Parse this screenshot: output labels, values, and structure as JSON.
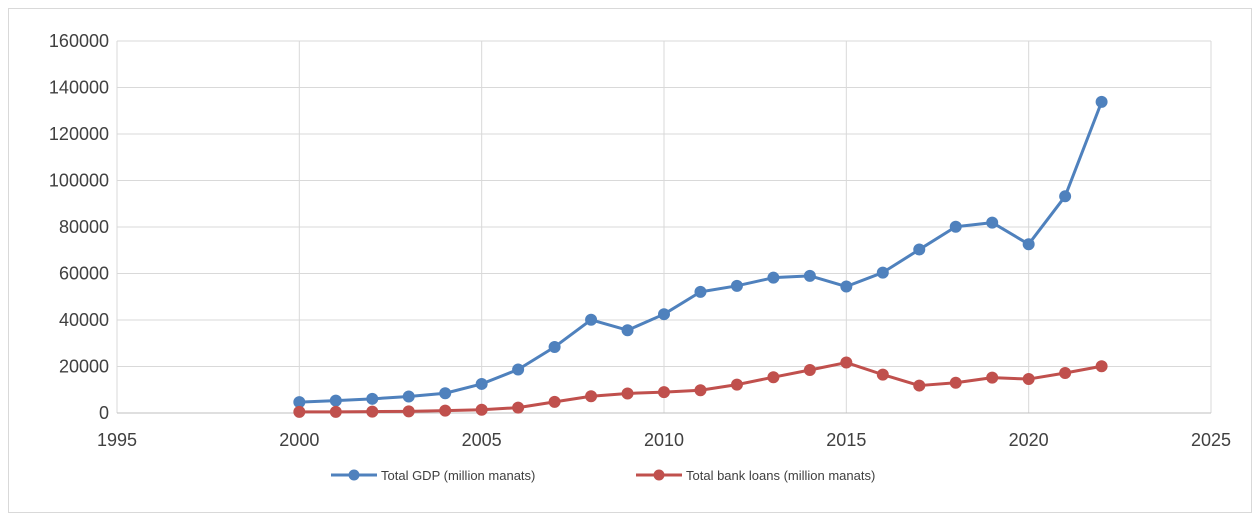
{
  "chart_data": {
    "type": "line",
    "title": "",
    "xlabel": "",
    "ylabel": "",
    "xlim": [
      1995,
      2025
    ],
    "ylim": [
      0,
      160000
    ],
    "x_ticks": [
      1995,
      2000,
      2005,
      2010,
      2015,
      2020,
      2025
    ],
    "y_ticks": [
      0,
      20000,
      40000,
      60000,
      80000,
      100000,
      120000,
      140000,
      160000
    ],
    "grid": "vertical and horizontal major gridlines",
    "legend_position": "bottom",
    "series": [
      {
        "name": "Total GDP (million manats)",
        "color": "#4F81BD",
        "x": [
          2000,
          2001,
          2002,
          2003,
          2004,
          2005,
          2006,
          2007,
          2008,
          2009,
          2010,
          2011,
          2012,
          2013,
          2014,
          2015,
          2016,
          2017,
          2018,
          2019,
          2020,
          2021,
          2022
        ],
        "values": [
          4700,
          5300,
          6100,
          7100,
          8500,
          12500,
          18700,
          28400,
          40100,
          35600,
          42500,
          52100,
          54700,
          58200,
          59000,
          54400,
          60400,
          70300,
          80100,
          81900,
          72600,
          93200,
          133800
        ]
      },
      {
        "name": "Total bank loans (million manats)",
        "color": "#C0504D",
        "x": [
          2000,
          2001,
          2002,
          2003,
          2004,
          2005,
          2006,
          2007,
          2008,
          2009,
          2010,
          2011,
          2012,
          2013,
          2014,
          2015,
          2016,
          2017,
          2018,
          2019,
          2020,
          2021,
          2022
        ],
        "values": [
          500,
          500,
          600,
          700,
          1000,
          1400,
          2300,
          4800,
          7200,
          8400,
          9000,
          9800,
          12200,
          15400,
          18500,
          21700,
          16500,
          11800,
          13000,
          15200,
          14600,
          17200,
          20100
        ]
      }
    ]
  }
}
